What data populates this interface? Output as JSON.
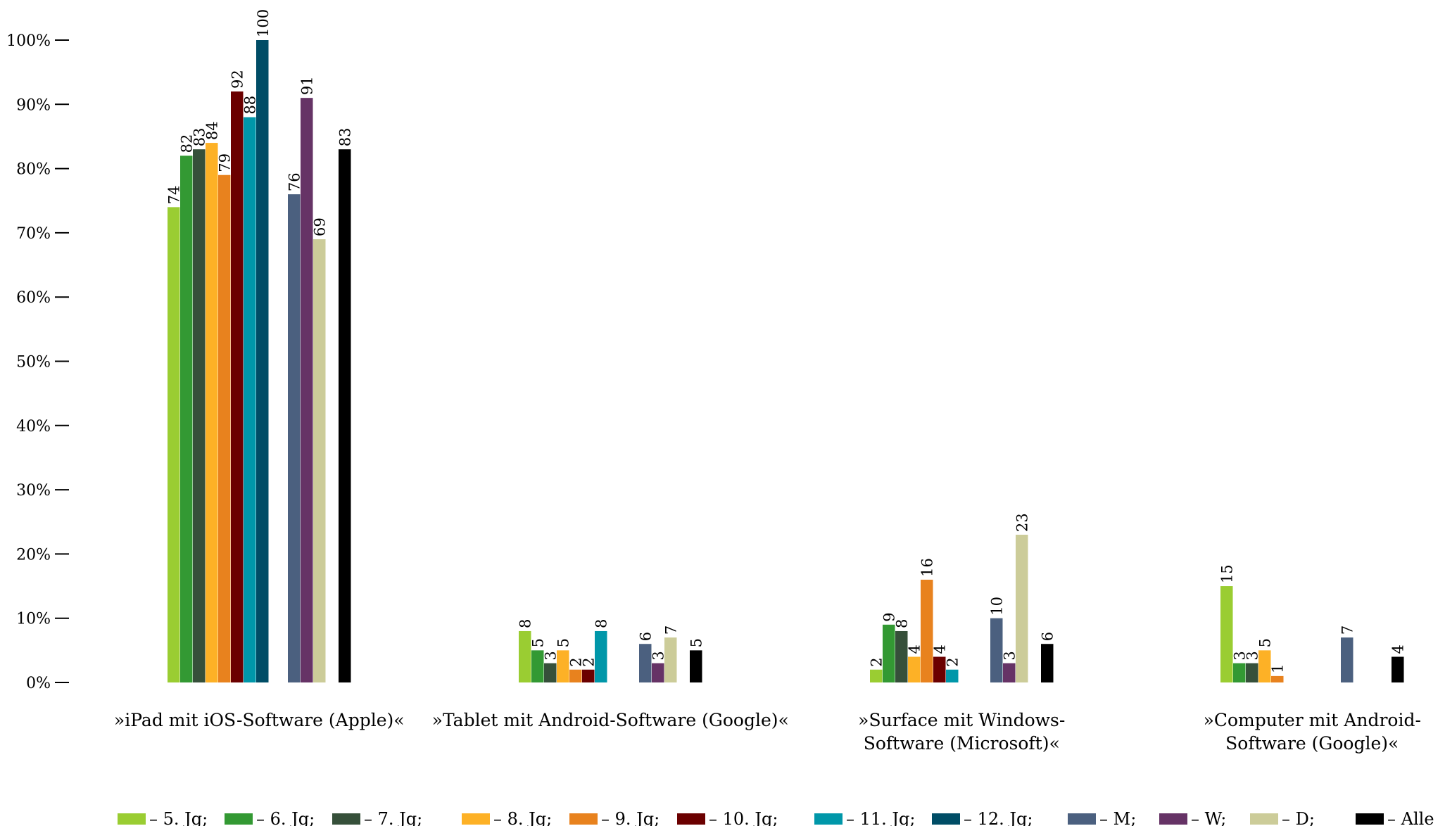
{
  "chart_data": {
    "type": "bar",
    "title": "",
    "xlabel": "",
    "ylabel": "",
    "ylim": [
      0,
      100
    ],
    "yticks": [
      "0%",
      "10%",
      "20%",
      "30%",
      "40%",
      "50%",
      "60%",
      "70%",
      "80%",
      "90%",
      "100%"
    ],
    "grid": false,
    "legend_position": "bottom",
    "categories": [
      [
        "»iPad mit iOS-Software (Apple)«"
      ],
      [
        "»Tablet mit Android-Software (Google)«"
      ],
      [
        "»Surface mit Windows-",
        "Software (Microsoft)«"
      ],
      [
        "»Computer mit Android-",
        "Software (Google)«"
      ]
    ],
    "series": [
      {
        "name": "– 5. Jg;",
        "color": "#9acd32",
        "values": [
          74,
          8,
          2,
          15
        ]
      },
      {
        "name": "– 6. Jg;",
        "color": "#339933",
        "values": [
          82,
          5,
          9,
          3
        ]
      },
      {
        "name": "– 7. Jg;",
        "color": "#36503a",
        "values": [
          83,
          3,
          8,
          3
        ]
      },
      {
        "name": "– 8. Jg;",
        "color": "#fdb126",
        "values": [
          84,
          5,
          4,
          5
        ]
      },
      {
        "name": "– 9. Jg;",
        "color": "#e8821e",
        "values": [
          79,
          2,
          16,
          1
        ]
      },
      {
        "name": "– 10. Jg;",
        "color": "#6b0000",
        "values": [
          92,
          2,
          4,
          null
        ]
      },
      {
        "name": "– 11. Jg;",
        "color": "#0097a9",
        "values": [
          88,
          8,
          2,
          null
        ]
      },
      {
        "name": "– 12. Jg;",
        "color": "#004d66",
        "values": [
          100,
          null,
          null,
          null
        ]
      },
      {
        "name": "– M;",
        "color": "#4b607f",
        "values": [
          76,
          6,
          10,
          7
        ]
      },
      {
        "name": "– W;",
        "color": "#663366",
        "values": [
          91,
          3,
          3,
          null
        ]
      },
      {
        "name": "– D;",
        "color": "#cccc99",
        "values": [
          69,
          7,
          23,
          null
        ]
      },
      {
        "name": "– Alle",
        "color": "#000000",
        "values": [
          83,
          5,
          6,
          4
        ]
      }
    ]
  }
}
